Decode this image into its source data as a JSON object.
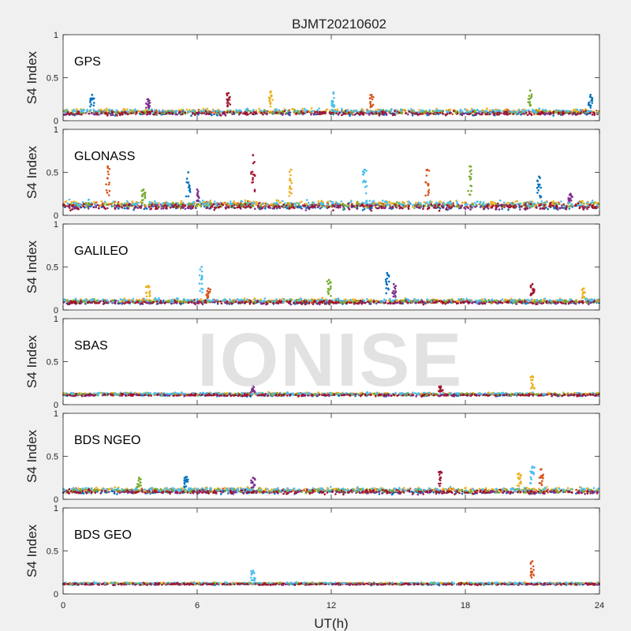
{
  "title": "BJMT20210602",
  "xlabel": "UT(h)",
  "ylabel": "S4 Index",
  "watermark": "IONISE",
  "series_colors": [
    "#0072bd",
    "#d95319",
    "#edb120",
    "#7e2f8e",
    "#77ac30",
    "#4dbeee",
    "#a2142f"
  ],
  "chart_data": [
    {
      "type": "scatter",
      "panel_label": "GPS",
      "xlim": [
        0,
        24
      ],
      "ylim": [
        0,
        1
      ],
      "xticks": [
        0,
        6,
        12,
        18,
        24
      ],
      "yticks": [
        0,
        0.5,
        1
      ],
      "baseline": 0.1,
      "noise": 0.035,
      "spikes": [
        [
          1.3,
          0.3
        ],
        [
          3.8,
          0.25
        ],
        [
          7.4,
          0.32
        ],
        [
          9.3,
          0.34
        ],
        [
          12.1,
          0.33
        ],
        [
          13.8,
          0.3
        ],
        [
          20.9,
          0.35
        ],
        [
          23.6,
          0.3
        ]
      ]
    },
    {
      "type": "scatter",
      "panel_label": "GLONASS",
      "xlim": [
        0,
        24
      ],
      "ylim": [
        0,
        1
      ],
      "xticks": [
        0,
        6,
        12,
        18,
        24
      ],
      "yticks": [
        0,
        0.5,
        1
      ],
      "baseline": 0.12,
      "noise": 0.05,
      "spikes": [
        [
          2.0,
          0.57
        ],
        [
          3.6,
          0.3
        ],
        [
          5.6,
          0.5
        ],
        [
          6.0,
          0.3
        ],
        [
          8.5,
          0.7
        ],
        [
          10.2,
          0.53
        ],
        [
          13.5,
          0.53
        ],
        [
          16.3,
          0.53
        ],
        [
          18.2,
          0.57
        ],
        [
          21.3,
          0.45
        ],
        [
          22.7,
          0.25
        ]
      ]
    },
    {
      "type": "scatter",
      "panel_label": "GALILEO",
      "xlim": [
        0,
        24
      ],
      "ylim": [
        0,
        1
      ],
      "xticks": [
        0,
        6,
        12,
        18,
        24
      ],
      "yticks": [
        0,
        0.5,
        1
      ],
      "baseline": 0.1,
      "noise": 0.03,
      "spikes": [
        [
          3.8,
          0.28
        ],
        [
          6.2,
          0.5
        ],
        [
          6.5,
          0.25
        ],
        [
          11.9,
          0.35
        ],
        [
          14.5,
          0.43
        ],
        [
          14.8,
          0.3
        ],
        [
          21.0,
          0.3
        ],
        [
          23.3,
          0.25
        ]
      ]
    },
    {
      "type": "scatter",
      "panel_label": "SBAS",
      "xlim": [
        0,
        24
      ],
      "ylim": [
        0,
        1
      ],
      "xticks": [
        0,
        6,
        12,
        18,
        24
      ],
      "yticks": [
        0,
        0.5,
        1
      ],
      "baseline": 0.12,
      "noise": 0.02,
      "spikes": [
        [
          8.5,
          0.22
        ],
        [
          16.9,
          0.22
        ],
        [
          21.0,
          0.33
        ]
      ]
    },
    {
      "type": "scatter",
      "panel_label": "BDS NGEO",
      "xlim": [
        0,
        24
      ],
      "ylim": [
        0,
        1
      ],
      "xticks": [
        0,
        6,
        12,
        18,
        24
      ],
      "yticks": [
        0,
        0.5,
        1
      ],
      "baseline": 0.1,
      "noise": 0.035,
      "spikes": [
        [
          3.4,
          0.25
        ],
        [
          5.5,
          0.26
        ],
        [
          8.5,
          0.25
        ],
        [
          16.9,
          0.32
        ],
        [
          20.4,
          0.3
        ],
        [
          21.0,
          0.38
        ],
        [
          21.4,
          0.35
        ]
      ]
    },
    {
      "type": "scatter",
      "panel_label": "BDS GEO",
      "xlim": [
        0,
        24
      ],
      "ylim": [
        0,
        1
      ],
      "xticks": [
        0,
        6,
        12,
        18,
        24
      ],
      "yticks": [
        0,
        0.5,
        1
      ],
      "baseline": 0.12,
      "noise": 0.015,
      "spikes": [
        [
          8.5,
          0.27
        ],
        [
          21.0,
          0.38
        ]
      ]
    }
  ]
}
